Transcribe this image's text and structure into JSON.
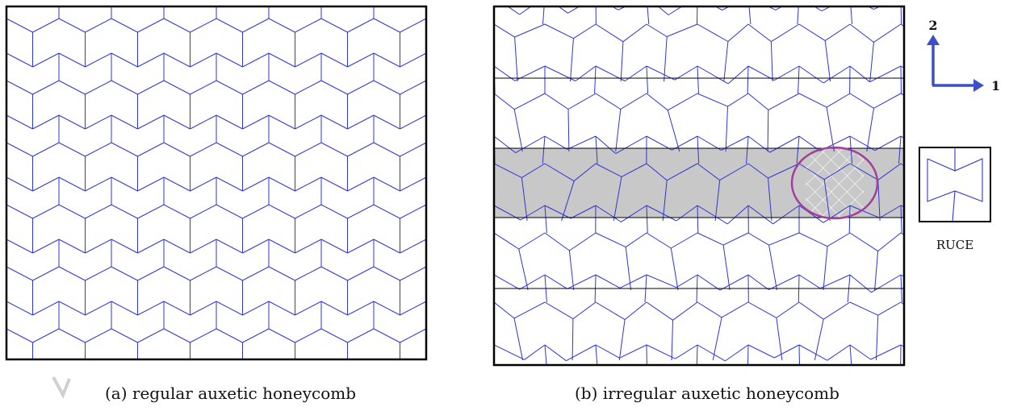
{
  "figure": {
    "caption_a": "(a) regular auxetic honeycomb",
    "caption_b": "(b) irregular auxetic honeycomb",
    "ruce_label": "RUCE",
    "axis_vertical_label": "2",
    "axis_horizontal_label": "1",
    "colors": {
      "cell_walls": "#2d35d6",
      "frame": "#000000",
      "shaded_band": "#c8c8c8",
      "highlight_circle": "#a0409a",
      "axis_arrows": "#3a4fc8",
      "hatch": "#ffffff"
    }
  }
}
